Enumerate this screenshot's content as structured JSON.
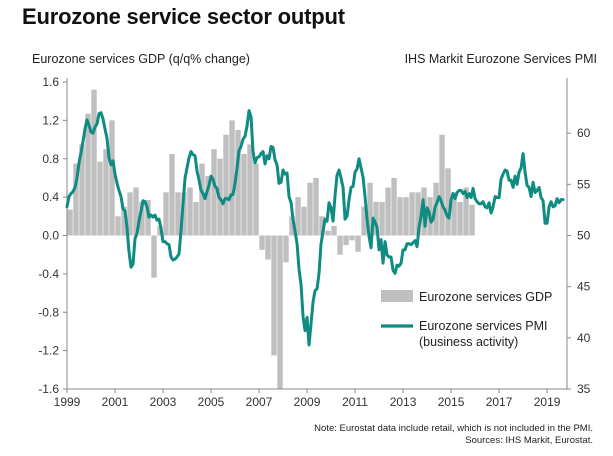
{
  "title": "Eurozone service sector output",
  "left_axis_title": "Eurozone services GDP (q/q% change)",
  "right_axis_title": "IHS Markit Eurozone Services PMI",
  "note_line1": "Note: Eurostat data include retail, which is not included in the PMI.",
  "note_line2": "Sources: IHS Markit, Eurostat.",
  "colors": {
    "gdp_bar": "#bfbfbf",
    "pmi_line": "#0f8c82",
    "axis": "#888888"
  },
  "chart_data": {
    "type": "bar",
    "legend_placement": "bottom-right",
    "grid": false,
    "x_ticks": [
      "1999",
      "2001",
      "2003",
      "2005",
      "2007",
      "2009",
      "2011",
      "2013",
      "2015",
      "2017",
      "2019"
    ],
    "left_y": {
      "ylim": [
        -1.6,
        1.6
      ],
      "ticks": [
        "1.6",
        "1.2",
        "0.8",
        "0.4",
        "0.0",
        "-0.4",
        "-0.8",
        "-1.2",
        "-1.6"
      ]
    },
    "right_y": {
      "ylim": [
        35,
        65
      ],
      "ticks": [
        "60",
        "55",
        "50",
        "45",
        "40",
        "35"
      ]
    },
    "series": [
      {
        "name": "Eurozone services GDP",
        "kind": "bar",
        "axis": "left",
        "start_year": 1999,
        "frequency": "quarterly",
        "values": [
          0.27,
          0.75,
          0.95,
          1.27,
          1.52,
          0.77,
          0.9,
          1.2,
          0.2,
          0.3,
          0.45,
          0.5,
          0.35,
          0.37,
          -0.44,
          0.1,
          0.45,
          0.85,
          0.45,
          0.45,
          0.5,
          0.35,
          0.75,
          0.62,
          0.9,
          0.8,
          1.05,
          1.2,
          1.1,
          0.85,
          0.95,
          0.75,
          -0.15,
          -0.25,
          -1.25,
          -1.6,
          -0.28,
          0.2,
          0.4,
          0.3,
          0.55,
          0.6,
          0.2,
          0.05,
          0.1,
          -0.2,
          -0.1,
          -0.05,
          -0.17,
          0.3,
          0.55,
          0.35,
          0.35,
          0.5,
          0.6,
          0.4,
          0.4,
          0.45,
          0.45,
          0.5,
          0.4,
          0.55,
          1.05,
          0.7,
          0.45,
          0.35,
          0.5,
          0.32,
          0.0
        ]
      },
      {
        "name": "Eurozone services PMI (business activity)",
        "kind": "line",
        "axis": "right",
        "start_year": 1999,
        "frequency": "monthly",
        "values": [
          52.8,
          53.8,
          54.1,
          54.3,
          54.7,
          55.6,
          57.1,
          58.1,
          59.2,
          60.4,
          61.3,
          60.8,
          60.1,
          60.0,
          60.6,
          60.9,
          61.9,
          62.0,
          61.4,
          60.4,
          59.5,
          57.6,
          56.9,
          57.3,
          56.0,
          55.1,
          54.4,
          53.8,
          52.6,
          52.4,
          50.8,
          48.4,
          46.9,
          47.2,
          49.7,
          50.2,
          51.4,
          52.4,
          53.4,
          53.3,
          52.8,
          51.8,
          52.0,
          51.8,
          52.0,
          51.5,
          51.6,
          50.7,
          49.4,
          49.4,
          49.2,
          49.1,
          47.9,
          47.6,
          47.7,
          47.9,
          48.2,
          50.5,
          53.1,
          55.6,
          56.6,
          57.6,
          58.2,
          57.9,
          57.8,
          56.3,
          55.4,
          54.4,
          54.1,
          53.6,
          54.3,
          54.9,
          55.8,
          55.5,
          54.8,
          54.6,
          53.7,
          53.5,
          53.1,
          53.6,
          53.6,
          53.5,
          54.0,
          54.0,
          55.1,
          56.6,
          58.3,
          58.7,
          59.4,
          59.7,
          60.7,
          62.2,
          61.6,
          58.2,
          57.1,
          57.6,
          57.7,
          58.0,
          58.2,
          57.0,
          57.8,
          57.5,
          58.7,
          58.6,
          57.4,
          56.9,
          55.1,
          55.2,
          56.4,
          56.0,
          56.1,
          53.8,
          53.2,
          51.6,
          50.4,
          49.2,
          46.7,
          45.2,
          42.1,
          40.7,
          42.0,
          39.3,
          41.4,
          43.5,
          44.6,
          44.8,
          46.3,
          49.2,
          50.4,
          51.6,
          51.4,
          53.2,
          52.7,
          51.4,
          53.9,
          55.9,
          56.4,
          55.6,
          54.7,
          51.6,
          51.9,
          53.5,
          54.7,
          54.8,
          56.2,
          56.5,
          57.5,
          56.6,
          55.7,
          53.8,
          51.6,
          49.9,
          48.8,
          51.7,
          51.3,
          50.8,
          48.6,
          49.6,
          47.3,
          49.4,
          48.1,
          47.9,
          47.9,
          46.6,
          46.3,
          47.1,
          47.0,
          47.3,
          48.6,
          48.6,
          49.2,
          49.2,
          49.1,
          49.3,
          49.5,
          48.9,
          50.8,
          51.9,
          53.5,
          50.9,
          52.7,
          52.3,
          51.3,
          51.6,
          52.8,
          53.2,
          53.8,
          53.4,
          52.8,
          52.5,
          51.9,
          51.7,
          53.5,
          54.1,
          53.6,
          54.2,
          54.4,
          54.4,
          54.1,
          54.3,
          53.7,
          54.1,
          53.7,
          54.6,
          53.6,
          53.3,
          53.1,
          53.1,
          53.3,
          52.8,
          52.7,
          53.2,
          52.2,
          52.8,
          53.8,
          53.7,
          53.7,
          55.5,
          56.0,
          56.4,
          56.3,
          55.4,
          55.4,
          54.7,
          55.8,
          55.0,
          56.2,
          56.6,
          58.0,
          56.2,
          54.9,
          54.7,
          53.8,
          55.2,
          54.2,
          54.4,
          54.7,
          53.7,
          53.4,
          51.2,
          51.2,
          52.8,
          53.3,
          52.8,
          52.9,
          53.6,
          53.2,
          53.5,
          53.5
        ]
      }
    ]
  }
}
